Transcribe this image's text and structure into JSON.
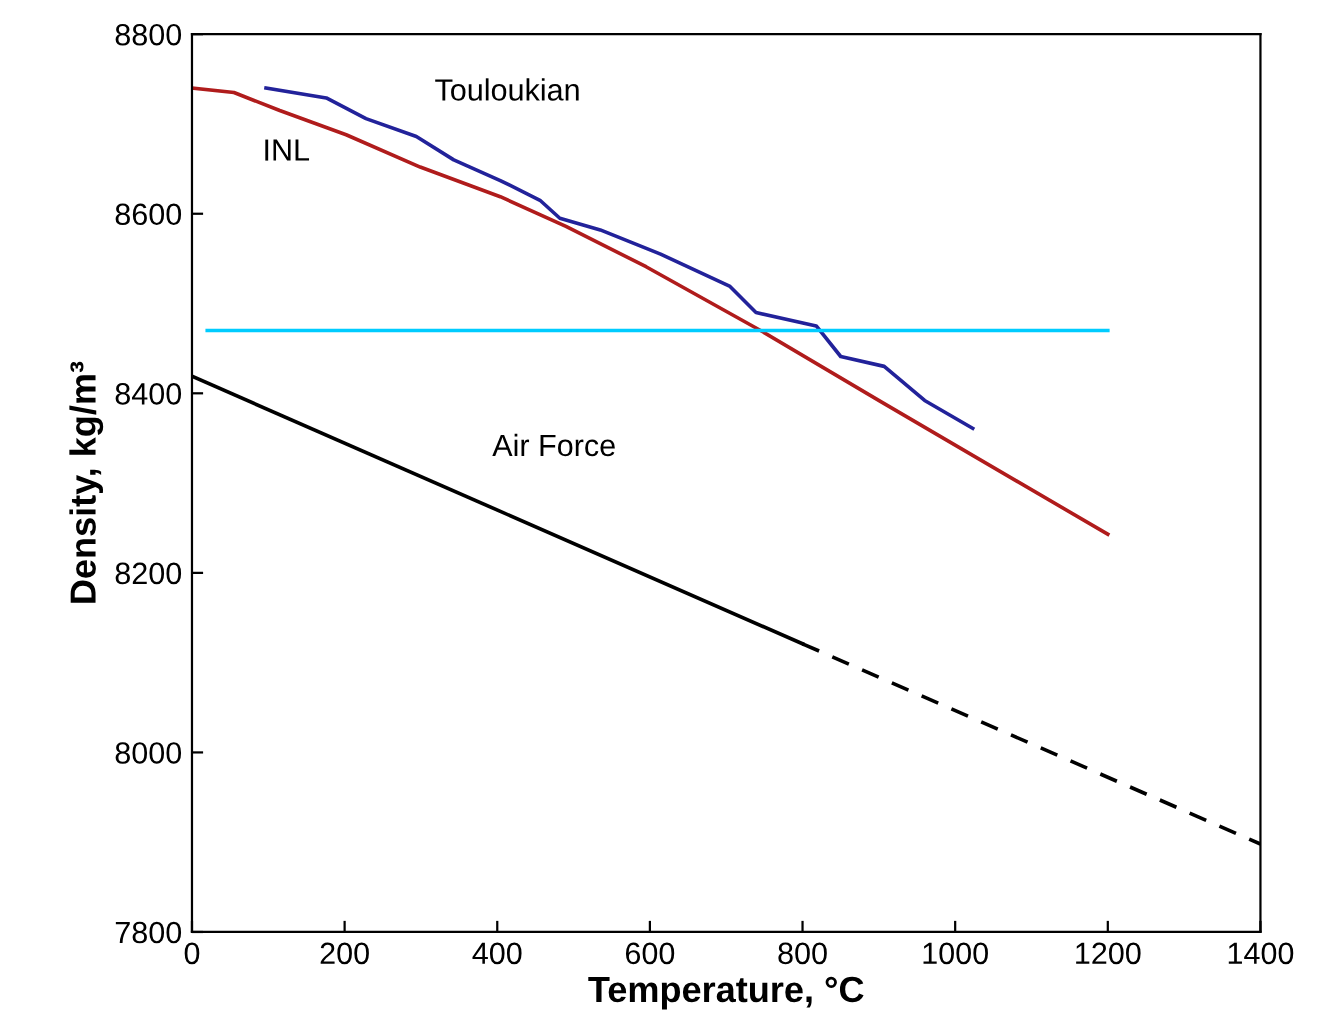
{
  "chart_data": {
    "type": "line",
    "xlabel": "Temperature, °C",
    "ylabel": "Density, kg/m³",
    "xlim": [
      0,
      1400
    ],
    "xticks": [
      0,
      200,
      400,
      600,
      800,
      1000,
      1200,
      1400
    ],
    "ylim": [
      7800,
      8800
    ],
    "yticks": [
      7800,
      8000,
      8200,
      8400,
      8600,
      8800
    ],
    "grid": false,
    "legend": false,
    "marker": "none",
    "series": [
      {
        "name": "Touloukian",
        "color": "#22229a",
        "line_style": "solid",
        "x": [
          97,
          176,
          228,
          294,
          343,
          404,
          456,
          482,
          535,
          614,
          705,
          739,
          818,
          850,
          907,
          960,
          1023
        ],
        "values": [
          8740,
          8729,
          8706,
          8686,
          8660,
          8637,
          8615,
          8595,
          8582,
          8555,
          8519,
          8490,
          8475,
          8441,
          8430,
          8392,
          8361
        ]
      },
      {
        "name": "INL",
        "color": "#b01c1c",
        "line_style": "solid",
        "x": [
          0,
          55,
          115,
          202,
          299,
          404,
          490,
          595,
          745,
          902,
          1200
        ],
        "values": [
          8740,
          8735,
          8715,
          8688,
          8652,
          8619,
          8586,
          8541,
          8470,
          8391,
          8243
        ]
      },
      {
        "color": "#00ccff",
        "line_style": "solid",
        "x": [
          20,
          1200
        ],
        "values": [
          8470,
          8470
        ]
      },
      {
        "name": "Air Force",
        "color": "#000000",
        "line_style": "solid",
        "x": [
          0,
          800
        ],
        "values": [
          8419,
          8121
        ]
      },
      {
        "color": "#000000",
        "line_style": "dashed",
        "x": [
          800,
          1400
        ],
        "values": [
          8121,
          7898
        ]
      }
    ]
  }
}
